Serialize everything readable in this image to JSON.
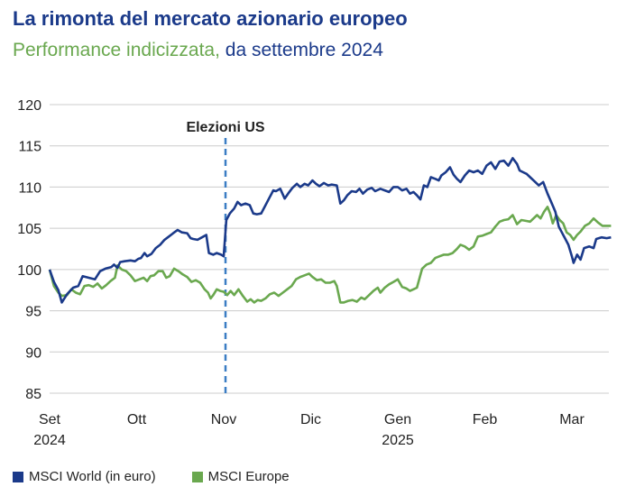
{
  "header": {
    "title": "La rimonta del mercato azionario europeo",
    "subtitle_part1": "Performance indicizzata,",
    "subtitle_part2": " da settembre 2024"
  },
  "colors": {
    "world": "#1b3a8a",
    "europe": "#6aa84f",
    "grid": "#cccccc",
    "event": "#3b7dc4"
  },
  "chart_data": {
    "type": "line",
    "title": "La rimonta del mercato azionario europeo",
    "subtitle": "Performance indicizzata, da settembre 2024",
    "xlabel": "",
    "ylabel": "",
    "ylim": [
      85,
      120
    ],
    "yticks": [
      85,
      90,
      95,
      100,
      105,
      110,
      115,
      120
    ],
    "x_ticks": [
      {
        "label": "Set",
        "sub": "2024",
        "pos": 0
      },
      {
        "label": "Ott",
        "sub": "",
        "pos": 1
      },
      {
        "label": "Nov",
        "sub": "",
        "pos": 2
      },
      {
        "label": "Dic",
        "sub": "",
        "pos": 3
      },
      {
        "label": "Gen",
        "sub": "2025",
        "pos": 4
      },
      {
        "label": "Feb",
        "sub": "",
        "pos": 5
      },
      {
        "label": "Mar",
        "sub": "",
        "pos": 6
      }
    ],
    "x_unit": "months since 1 Sep 2024",
    "grid": true,
    "legend_position": "bottom-left",
    "annotation": {
      "label": "Elezioni US",
      "x": 2.0
    },
    "series": [
      {
        "name": "MSCI World (in euro)",
        "color": "#1b3a8a",
        "points": [
          [
            0.0,
            100.0
          ],
          [
            0.05,
            98.5
          ],
          [
            0.1,
            97.5
          ],
          [
            0.14,
            96.0
          ],
          [
            0.2,
            97.0
          ],
          [
            0.27,
            97.8
          ],
          [
            0.33,
            98.0
          ],
          [
            0.38,
            99.2
          ],
          [
            0.45,
            99.0
          ],
          [
            0.52,
            98.8
          ],
          [
            0.58,
            99.8
          ],
          [
            0.64,
            100.1
          ],
          [
            0.71,
            100.3
          ],
          [
            0.74,
            100.6
          ],
          [
            0.78,
            100.2
          ],
          [
            0.81,
            100.9
          ],
          [
            0.86,
            101.0
          ],
          [
            0.93,
            101.1
          ],
          [
            0.98,
            101.0
          ],
          [
            1.02,
            101.3
          ],
          [
            1.05,
            101.4
          ],
          [
            1.09,
            102.0
          ],
          [
            1.12,
            101.6
          ],
          [
            1.17,
            101.9
          ],
          [
            1.22,
            102.6
          ],
          [
            1.27,
            103.0
          ],
          [
            1.32,
            103.6
          ],
          [
            1.37,
            104.0
          ],
          [
            1.42,
            104.4
          ],
          [
            1.47,
            104.8
          ],
          [
            1.52,
            104.5
          ],
          [
            1.58,
            104.4
          ],
          [
            1.62,
            103.8
          ],
          [
            1.65,
            103.7
          ],
          [
            1.7,
            103.6
          ],
          [
            1.75,
            103.9
          ],
          [
            1.8,
            104.2
          ],
          [
            1.83,
            102.0
          ],
          [
            1.88,
            101.8
          ],
          [
            1.92,
            102.0
          ],
          [
            1.97,
            101.8
          ],
          [
            2.0,
            101.6
          ],
          [
            2.03,
            106.0
          ],
          [
            2.07,
            106.8
          ],
          [
            2.12,
            107.4
          ],
          [
            2.16,
            108.2
          ],
          [
            2.2,
            107.8
          ],
          [
            2.25,
            108.0
          ],
          [
            2.3,
            107.8
          ],
          [
            2.34,
            106.8
          ],
          [
            2.38,
            106.7
          ],
          [
            2.43,
            106.8
          ],
          [
            2.47,
            107.6
          ],
          [
            2.52,
            108.6
          ],
          [
            2.57,
            109.6
          ],
          [
            2.6,
            109.5
          ],
          [
            2.65,
            109.8
          ],
          [
            2.7,
            108.6
          ],
          [
            2.74,
            109.2
          ],
          [
            2.79,
            109.9
          ],
          [
            2.84,
            110.4
          ],
          [
            2.88,
            110.0
          ],
          [
            2.93,
            110.4
          ],
          [
            2.97,
            110.2
          ],
          [
            3.02,
            110.8
          ],
          [
            3.06,
            110.4
          ],
          [
            3.1,
            110.1
          ],
          [
            3.15,
            110.5
          ],
          [
            3.2,
            110.2
          ],
          [
            3.24,
            110.3
          ],
          [
            3.3,
            110.2
          ],
          [
            3.34,
            108.0
          ],
          [
            3.38,
            108.4
          ],
          [
            3.42,
            109.0
          ],
          [
            3.47,
            109.5
          ],
          [
            3.52,
            109.4
          ],
          [
            3.56,
            109.8
          ],
          [
            3.6,
            109.2
          ],
          [
            3.65,
            109.7
          ],
          [
            3.7,
            109.9
          ],
          [
            3.74,
            109.5
          ],
          [
            3.8,
            109.8
          ],
          [
            3.85,
            109.6
          ],
          [
            3.9,
            109.4
          ],
          [
            3.95,
            110.0
          ],
          [
            4.0,
            110.0
          ],
          [
            4.05,
            109.6
          ],
          [
            4.1,
            109.8
          ],
          [
            4.14,
            109.2
          ],
          [
            4.18,
            109.4
          ],
          [
            4.22,
            109.0
          ],
          [
            4.26,
            108.5
          ],
          [
            4.3,
            110.2
          ],
          [
            4.34,
            110.0
          ],
          [
            4.38,
            111.2
          ],
          [
            4.43,
            111.0
          ],
          [
            4.47,
            110.8
          ],
          [
            4.5,
            111.4
          ],
          [
            4.55,
            111.8
          ],
          [
            4.6,
            112.4
          ],
          [
            4.64,
            111.5
          ],
          [
            4.68,
            111.0
          ],
          [
            4.72,
            110.6
          ],
          [
            4.77,
            111.4
          ],
          [
            4.82,
            112.0
          ],
          [
            4.87,
            111.8
          ],
          [
            4.92,
            112.0
          ],
          [
            4.97,
            111.6
          ],
          [
            5.02,
            112.6
          ],
          [
            5.07,
            113.0
          ],
          [
            5.12,
            112.2
          ],
          [
            5.17,
            113.1
          ],
          [
            5.22,
            113.2
          ],
          [
            5.27,
            112.6
          ],
          [
            5.32,
            113.5
          ],
          [
            5.37,
            112.8
          ],
          [
            5.4,
            112.0
          ],
          [
            5.44,
            111.8
          ],
          [
            5.48,
            111.6
          ],
          [
            5.52,
            111.2
          ],
          [
            5.56,
            110.8
          ],
          [
            5.62,
            110.2
          ],
          [
            5.67,
            110.6
          ],
          [
            5.72,
            109.2
          ],
          [
            5.77,
            108.0
          ],
          [
            5.81,
            107.0
          ],
          [
            5.85,
            105.2
          ],
          [
            5.88,
            104.6
          ],
          [
            5.92,
            103.8
          ],
          [
            5.96,
            103.0
          ],
          [
            6.0,
            101.6
          ],
          [
            6.02,
            100.8
          ],
          [
            6.06,
            101.8
          ],
          [
            6.1,
            101.2
          ],
          [
            6.14,
            102.6
          ],
          [
            6.2,
            102.8
          ],
          [
            6.25,
            102.6
          ],
          [
            6.28,
            103.7
          ],
          [
            6.34,
            103.9
          ],
          [
            6.4,
            103.8
          ],
          [
            6.45,
            103.9
          ]
        ]
      },
      {
        "name": "MSCI Europe",
        "color": "#6aa84f",
        "points": [
          [
            0.0,
            100.0
          ],
          [
            0.05,
            98.0
          ],
          [
            0.1,
            97.2
          ],
          [
            0.14,
            96.8
          ],
          [
            0.2,
            96.9
          ],
          [
            0.25,
            97.6
          ],
          [
            0.3,
            97.2
          ],
          [
            0.35,
            97.0
          ],
          [
            0.4,
            98.0
          ],
          [
            0.45,
            98.1
          ],
          [
            0.5,
            97.9
          ],
          [
            0.55,
            98.3
          ],
          [
            0.6,
            97.7
          ],
          [
            0.65,
            98.1
          ],
          [
            0.7,
            98.6
          ],
          [
            0.75,
            99.0
          ],
          [
            0.78,
            100.5
          ],
          [
            0.83,
            100.0
          ],
          [
            0.88,
            99.8
          ],
          [
            0.93,
            99.3
          ],
          [
            0.98,
            98.6
          ],
          [
            1.03,
            98.8
          ],
          [
            1.08,
            99.0
          ],
          [
            1.12,
            98.6
          ],
          [
            1.16,
            99.2
          ],
          [
            1.2,
            99.3
          ],
          [
            1.25,
            99.8
          ],
          [
            1.3,
            99.8
          ],
          [
            1.34,
            99.0
          ],
          [
            1.38,
            99.2
          ],
          [
            1.43,
            100.1
          ],
          [
            1.48,
            99.8
          ],
          [
            1.53,
            99.4
          ],
          [
            1.58,
            99.1
          ],
          [
            1.63,
            98.5
          ],
          [
            1.68,
            98.7
          ],
          [
            1.73,
            98.4
          ],
          [
            1.78,
            97.6
          ],
          [
            1.82,
            97.2
          ],
          [
            1.85,
            96.5
          ],
          [
            1.88,
            96.9
          ],
          [
            1.92,
            97.6
          ],
          [
            1.96,
            97.4
          ],
          [
            2.0,
            97.3
          ],
          [
            2.04,
            96.9
          ],
          [
            2.08,
            97.4
          ],
          [
            2.12,
            96.9
          ],
          [
            2.17,
            97.6
          ],
          [
            2.22,
            96.8
          ],
          [
            2.27,
            96.1
          ],
          [
            2.31,
            96.4
          ],
          [
            2.35,
            96.0
          ],
          [
            2.39,
            96.3
          ],
          [
            2.43,
            96.2
          ],
          [
            2.48,
            96.5
          ],
          [
            2.53,
            97.0
          ],
          [
            2.58,
            97.2
          ],
          [
            2.63,
            96.8
          ],
          [
            2.68,
            97.2
          ],
          [
            2.73,
            97.6
          ],
          [
            2.78,
            98.0
          ],
          [
            2.83,
            98.8
          ],
          [
            2.88,
            99.1
          ],
          [
            2.93,
            99.3
          ],
          [
            2.98,
            99.5
          ],
          [
            3.02,
            99.1
          ],
          [
            3.07,
            98.7
          ],
          [
            3.12,
            98.8
          ],
          [
            3.17,
            98.4
          ],
          [
            3.22,
            98.4
          ],
          [
            3.27,
            98.6
          ],
          [
            3.3,
            98.0
          ],
          [
            3.34,
            96.0
          ],
          [
            3.38,
            96.0
          ],
          [
            3.43,
            96.2
          ],
          [
            3.48,
            96.3
          ],
          [
            3.53,
            96.1
          ],
          [
            3.58,
            96.6
          ],
          [
            3.62,
            96.4
          ],
          [
            3.67,
            96.9
          ],
          [
            3.72,
            97.4
          ],
          [
            3.77,
            97.8
          ],
          [
            3.8,
            97.2
          ],
          [
            3.85,
            97.8
          ],
          [
            3.9,
            98.2
          ],
          [
            3.95,
            98.5
          ],
          [
            4.0,
            98.8
          ],
          [
            4.05,
            97.9
          ],
          [
            4.1,
            97.7
          ],
          [
            4.14,
            97.4
          ],
          [
            4.18,
            97.6
          ],
          [
            4.22,
            97.8
          ],
          [
            4.28,
            100.1
          ],
          [
            4.33,
            100.6
          ],
          [
            4.38,
            100.8
          ],
          [
            4.43,
            101.4
          ],
          [
            4.48,
            101.6
          ],
          [
            4.53,
            101.8
          ],
          [
            4.58,
            101.8
          ],
          [
            4.63,
            102.0
          ],
          [
            4.68,
            102.5
          ],
          [
            4.72,
            103.0
          ],
          [
            4.77,
            102.8
          ],
          [
            4.82,
            102.4
          ],
          [
            4.87,
            102.8
          ],
          [
            4.92,
            104.0
          ],
          [
            4.97,
            104.1
          ],
          [
            5.02,
            104.3
          ],
          [
            5.07,
            104.5
          ],
          [
            5.12,
            105.2
          ],
          [
            5.17,
            105.8
          ],
          [
            5.22,
            106.0
          ],
          [
            5.27,
            106.1
          ],
          [
            5.32,
            106.6
          ],
          [
            5.37,
            105.5
          ],
          [
            5.42,
            106.0
          ],
          [
            5.47,
            105.9
          ],
          [
            5.52,
            105.8
          ],
          [
            5.56,
            106.2
          ],
          [
            5.6,
            106.6
          ],
          [
            5.64,
            106.2
          ],
          [
            5.68,
            107.0
          ],
          [
            5.72,
            107.6
          ],
          [
            5.75,
            106.8
          ],
          [
            5.78,
            105.6
          ],
          [
            5.82,
            106.6
          ],
          [
            5.86,
            106.0
          ],
          [
            5.9,
            105.6
          ],
          [
            5.94,
            104.5
          ],
          [
            5.98,
            104.2
          ],
          [
            6.02,
            103.6
          ],
          [
            6.06,
            104.2
          ],
          [
            6.1,
            104.6
          ],
          [
            6.15,
            105.3
          ],
          [
            6.2,
            105.6
          ],
          [
            6.25,
            106.2
          ],
          [
            6.3,
            105.7
          ],
          [
            6.35,
            105.3
          ],
          [
            6.4,
            105.3
          ],
          [
            6.45,
            105.3
          ]
        ]
      }
    ]
  },
  "legend": [
    {
      "label": "MSCI World (in euro)",
      "color": "#1b3a8a"
    },
    {
      "label": "MSCI Europe",
      "color": "#6aa84f"
    }
  ]
}
